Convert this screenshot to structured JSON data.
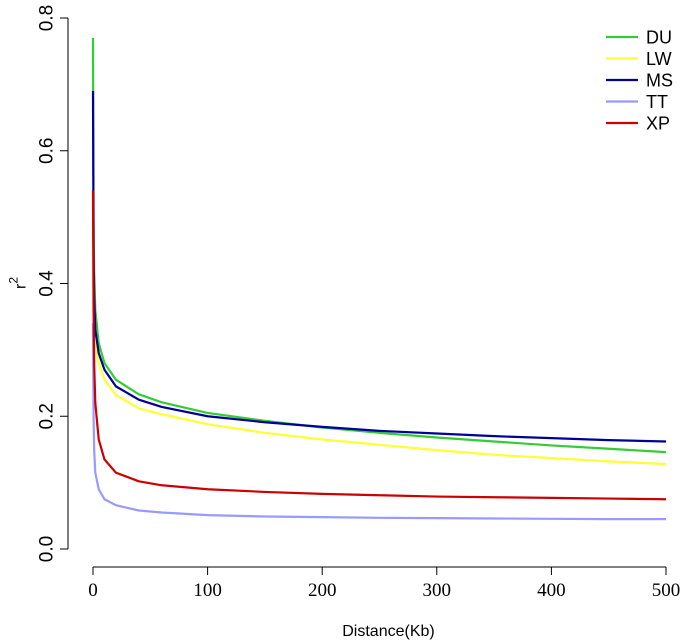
{
  "chart_data": {
    "type": "line",
    "title": "",
    "xlabel": "Distance(Kb)",
    "ylabel": "r",
    "ylabel_superscript": "2",
    "xlim": [
      0,
      500
    ],
    "ylim": [
      0,
      0.8
    ],
    "x_ticks": [
      0,
      100,
      200,
      300,
      400,
      500
    ],
    "x_tick_labels": [
      "0",
      "100",
      "200",
      "300",
      "400",
      "500"
    ],
    "y_ticks": [
      0.0,
      0.2,
      0.4,
      0.6,
      0.8
    ],
    "y_tick_labels": [
      "0.0",
      "0.2",
      "0.4",
      "0.6",
      "0.8"
    ],
    "grid": false,
    "legend_position": "top-right",
    "x": [
      0,
      0.5,
      1,
      2,
      5,
      10,
      20,
      40,
      60,
      100,
      150,
      200,
      250,
      300,
      350,
      400,
      450,
      500
    ],
    "series": [
      {
        "name": "DU",
        "color": "#33cc33",
        "values": [
          0.77,
          0.5,
          0.42,
          0.36,
          0.31,
          0.28,
          0.255,
          0.233,
          0.221,
          0.205,
          0.193,
          0.183,
          0.175,
          0.168,
          0.162,
          0.156,
          0.151,
          0.146
        ]
      },
      {
        "name": "LW",
        "color": "#ffff33",
        "values": [
          0.55,
          0.4,
          0.35,
          0.31,
          0.28,
          0.255,
          0.232,
          0.212,
          0.203,
          0.188,
          0.175,
          0.165,
          0.157,
          0.149,
          0.142,
          0.137,
          0.132,
          0.128
        ]
      },
      {
        "name": "MS",
        "color": "#000099",
        "values": [
          0.69,
          0.45,
          0.38,
          0.33,
          0.295,
          0.27,
          0.245,
          0.225,
          0.214,
          0.2,
          0.191,
          0.184,
          0.178,
          0.174,
          0.17,
          0.167,
          0.164,
          0.162
        ]
      },
      {
        "name": "TT",
        "color": "#9999ff",
        "values": [
          0.34,
          0.2,
          0.15,
          0.115,
          0.09,
          0.075,
          0.066,
          0.058,
          0.055,
          0.051,
          0.049,
          0.048,
          0.047,
          0.0465,
          0.046,
          0.0455,
          0.045,
          0.045
        ]
      },
      {
        "name": "XP",
        "color": "#cc0000",
        "values": [
          0.54,
          0.36,
          0.28,
          0.22,
          0.165,
          0.135,
          0.115,
          0.102,
          0.096,
          0.09,
          0.086,
          0.083,
          0.081,
          0.079,
          0.078,
          0.077,
          0.076,
          0.075
        ]
      }
    ]
  }
}
